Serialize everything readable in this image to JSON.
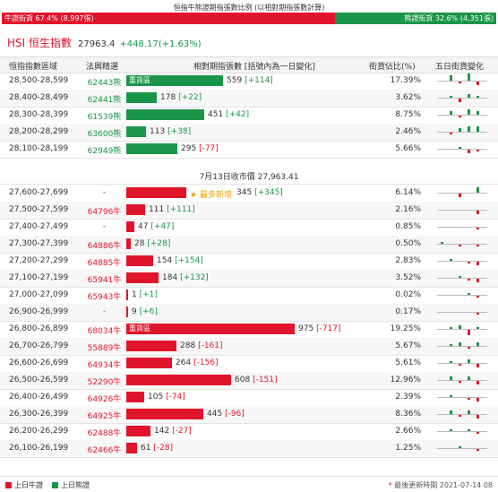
{
  "title": "恒指牛熊證期指張數比例 (以相對期指張數計算)",
  "ratio": {
    "bull_label": "牛證街貨 67.4% (8,997張)",
    "bear_label": "熊證街貨 32.6% (4,351張)",
    "bull_fraction": 0.674,
    "bear_fraction": 0.326
  },
  "index": {
    "name": "HSI 恒生指數",
    "price": "27963.4",
    "change": "+448.17(+1.63%)"
  },
  "headers": {
    "range": "恒指指數區域",
    "code": "法興精選",
    "relative": "相對期指張數 [括號內為一日變化]",
    "pct": "街貨佔比(%)",
    "five_day": "五日街貨變化"
  },
  "mid_note": "7月13日收市價 27,963.41",
  "highlight_text": "重貨區",
  "annotation": "最多新增",
  "colors": {
    "bull": "#e0142a",
    "bear": "#1a9648"
  },
  "bear_rows": [
    {
      "range": "28,500-28,599",
      "code": "62443熊",
      "value": "559",
      "change": "[+114]",
      "pct": "17.39%",
      "highlight": true,
      "spark": [
        0,
        3,
        -1,
        4,
        -2
      ]
    },
    {
      "range": "28,400-28,499",
      "code": "62441熊",
      "value": "178",
      "change": "[+22]",
      "pct": "3.62%",
      "highlight": false,
      "spark": [
        0,
        1,
        -2,
        2,
        1
      ]
    },
    {
      "range": "28,300-28,399",
      "code": "61539熊",
      "value": "451",
      "change": "[+42]",
      "pct": "8.75%",
      "highlight": false,
      "spark": [
        0,
        2,
        -1,
        3,
        2
      ]
    },
    {
      "range": "28,200-28,299",
      "code": "63600熊",
      "value": "113",
      "change": "[+38]",
      "pct": "2.46%",
      "highlight": false,
      "spark": [
        0,
        -1,
        2,
        3,
        3
      ]
    },
    {
      "range": "28,100-28,199",
      "code": "62949熊",
      "value": "295",
      "change": "[-77]",
      "pct": "5.66%",
      "highlight": false,
      "spark": [
        0,
        0,
        1,
        -2,
        -1
      ]
    }
  ],
  "bull_rows": [
    {
      "range": "27,600-27,699",
      "code": "-",
      "value": "345",
      "change": "[+345]",
      "pct": "6.14%",
      "highlight": false,
      "annotated": true,
      "spark": [
        0,
        0,
        -2,
        0,
        3
      ]
    },
    {
      "range": "27,500-27,599",
      "code": "64796牛",
      "value": "111",
      "change": "[+111]",
      "pct": "2.16%",
      "highlight": false,
      "annotated": false,
      "spark": [
        0,
        0,
        0,
        0,
        -2
      ]
    },
    {
      "range": "27,400-27,499",
      "code": "-",
      "value": "47",
      "change": "[+47]",
      "pct": "0.85%",
      "highlight": false,
      "annotated": false,
      "spark": [
        0,
        0,
        0,
        0,
        -1
      ]
    },
    {
      "range": "27,300-27,399",
      "code": "64886牛",
      "value": "28",
      "change": "[+28]",
      "pct": "0.50%",
      "highlight": false,
      "annotated": false,
      "spark": [
        1,
        0,
        -1,
        0,
        -1
      ]
    },
    {
      "range": "27,200-27,299",
      "code": "64885牛",
      "value": "154",
      "change": "[+154]",
      "pct": "2.83%",
      "highlight": false,
      "annotated": false,
      "spark": [
        0,
        1,
        0,
        -1,
        -2
      ]
    },
    {
      "range": "27,100-27,199",
      "code": "65941牛",
      "value": "184",
      "change": "[+132]",
      "pct": "3.52%",
      "highlight": false,
      "annotated": false,
      "spark": [
        0,
        0,
        1,
        -1,
        -2
      ]
    },
    {
      "range": "27,000-27,099",
      "code": "65943牛",
      "value": "1",
      "change": "[+1]",
      "pct": "0.02%",
      "highlight": false,
      "annotated": false,
      "spark": [
        0,
        0,
        0,
        1,
        -1
      ]
    },
    {
      "range": "26,900-26,999",
      "code": "-",
      "value": "9",
      "change": "[+6]",
      "pct": "0.17%",
      "highlight": false,
      "annotated": false,
      "spark": [
        0,
        0,
        0,
        0,
        -1
      ]
    },
    {
      "range": "26,800-26,899",
      "code": "68034牛",
      "value": "975",
      "change": "[-717]",
      "pct": "19.25%",
      "highlight": true,
      "annotated": false,
      "spark": [
        0,
        1,
        2,
        -3,
        1
      ]
    },
    {
      "range": "26,700-26,799",
      "code": "55889牛",
      "value": "288",
      "change": "[-161]",
      "pct": "5.67%",
      "highlight": false,
      "annotated": false,
      "spark": [
        0,
        1,
        2,
        -1,
        2
      ]
    },
    {
      "range": "26,600-26,699",
      "code": "64934牛",
      "value": "264",
      "change": "[-156]",
      "pct": "5.61%",
      "highlight": false,
      "annotated": false,
      "spark": [
        0,
        1,
        -1,
        2,
        -2
      ]
    },
    {
      "range": "26,500-26,599",
      "code": "52290牛",
      "value": "608",
      "change": "[-151]",
      "pct": "12.96%",
      "highlight": false,
      "annotated": false,
      "spark": [
        0,
        2,
        -1,
        2,
        -2
      ]
    },
    {
      "range": "26,400-26,499",
      "code": "64926牛",
      "value": "105",
      "change": "[-74]",
      "pct": "2.39%",
      "highlight": false,
      "annotated": false,
      "spark": [
        0,
        1,
        0,
        -1,
        -2
      ]
    },
    {
      "range": "26,300-26,399",
      "code": "64925牛",
      "value": "445",
      "change": "[-96]",
      "pct": "8.36%",
      "highlight": false,
      "annotated": false,
      "spark": [
        0,
        2,
        -1,
        2,
        -2
      ]
    },
    {
      "range": "26,200-26,299",
      "code": "62488牛",
      "value": "142",
      "change": "[-27]",
      "pct": "2.66%",
      "highlight": false,
      "annotated": false,
      "spark": [
        0,
        1,
        0,
        1,
        -1
      ]
    },
    {
      "range": "26,100-26,199",
      "code": "62466牛",
      "value": "61",
      "change": "[-28]",
      "pct": "1.25%",
      "highlight": false,
      "annotated": false,
      "spark": [
        0,
        0,
        1,
        0,
        -1
      ]
    }
  ],
  "legend": {
    "bull": "上日牛證",
    "bear": "上日熊證",
    "updated_label": "最後更新時間",
    "updated_time": "2021-07-14 08"
  }
}
